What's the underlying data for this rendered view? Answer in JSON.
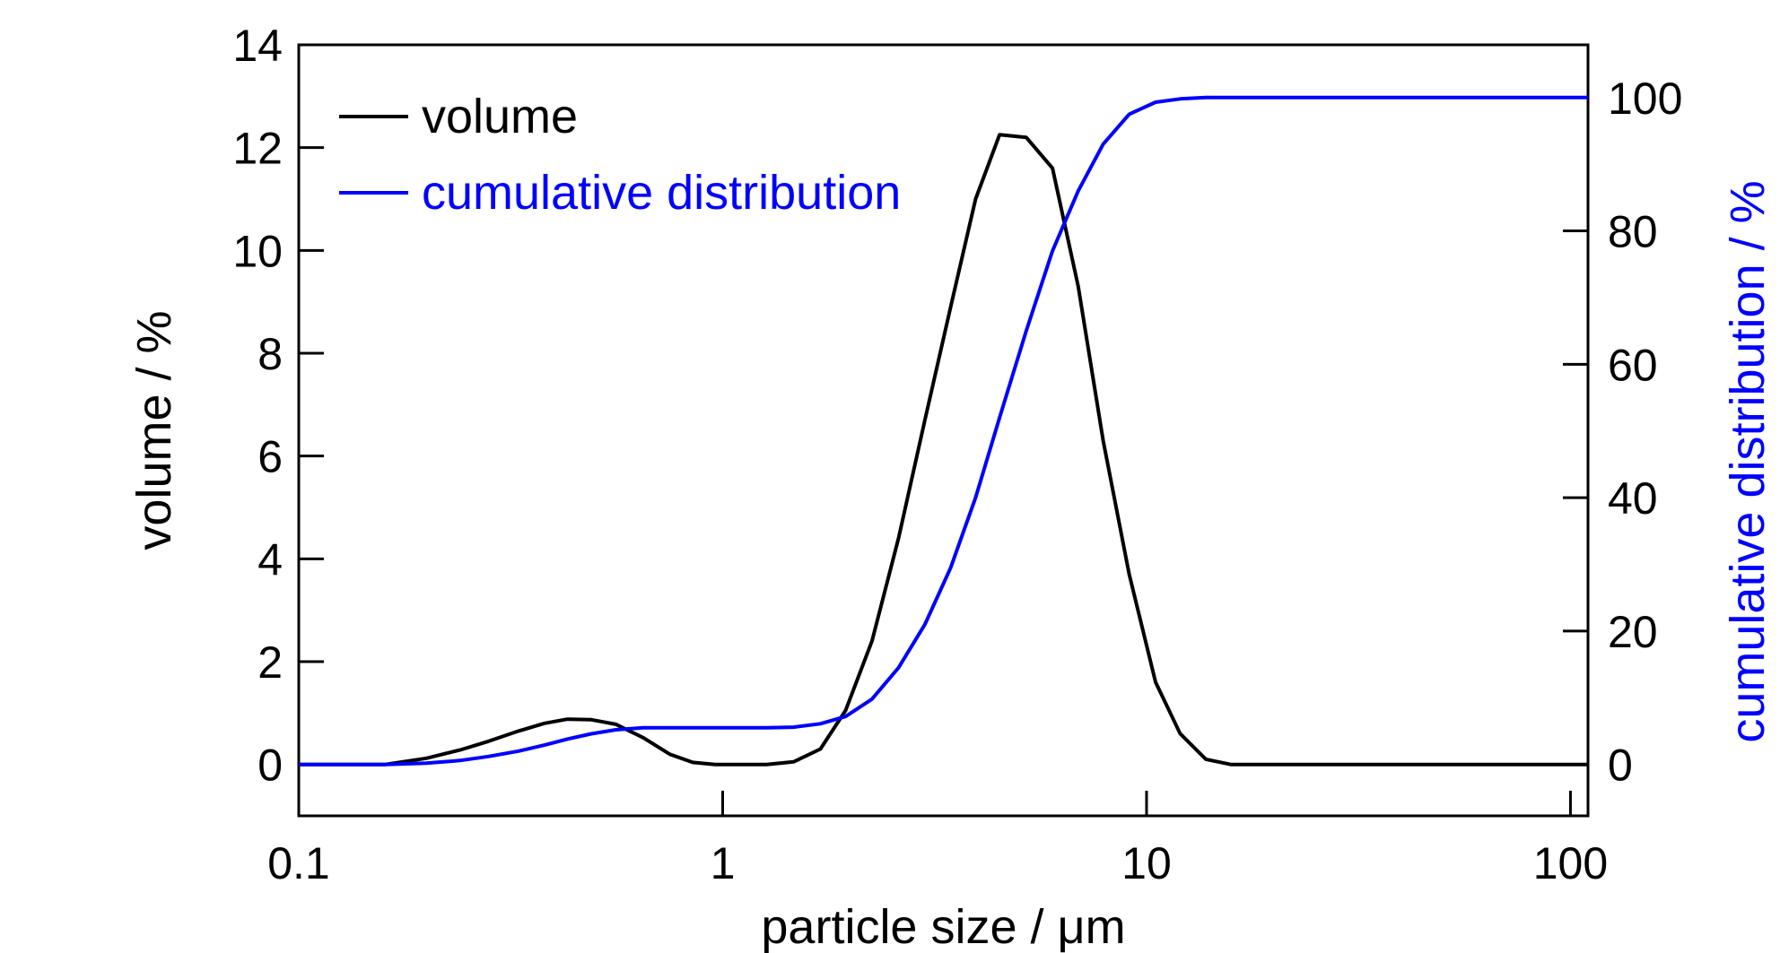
{
  "chart_data": {
    "type": "line",
    "xlabel": "particle size / μm",
    "ylabel": "volume / %",
    "y2label": "cumulative distribution / %",
    "xscale": "log",
    "xlim": [
      0.1,
      110
    ],
    "ylim": [
      -1,
      14
    ],
    "y2lim": [
      -7.7,
      107.9
    ],
    "x_ticks": [
      {
        "value": 0.1,
        "label": "0.1"
      },
      {
        "value": 1,
        "label": "1"
      },
      {
        "value": 10,
        "label": "10"
      },
      {
        "value": 100,
        "label": "100"
      }
    ],
    "y_ticks": [
      {
        "value": 0,
        "label": "0"
      },
      {
        "value": 2,
        "label": "2"
      },
      {
        "value": 4,
        "label": "4"
      },
      {
        "value": 6,
        "label": "6"
      },
      {
        "value": 8,
        "label": "8"
      },
      {
        "value": 10,
        "label": "10"
      },
      {
        "value": 12,
        "label": "12"
      },
      {
        "value": 14,
        "label": "14"
      }
    ],
    "y2_ticks": [
      {
        "value": 0,
        "label": "0"
      },
      {
        "value": 20,
        "label": "20"
      },
      {
        "value": 40,
        "label": "40"
      },
      {
        "value": 60,
        "label": "60"
      },
      {
        "value": 80,
        "label": "80"
      },
      {
        "value": 100,
        "label": "100"
      }
    ],
    "legend_position": "top-left",
    "series": [
      {
        "name": "volume",
        "axis": "left",
        "color": "#000000",
        "x": [
          0.1,
          0.13,
          0.16,
          0.2,
          0.24,
          0.28,
          0.33,
          0.38,
          0.43,
          0.49,
          0.56,
          0.65,
          0.75,
          0.85,
          0.96,
          1.1,
          1.27,
          1.47,
          1.7,
          1.95,
          2.25,
          2.6,
          3.0,
          3.45,
          3.95,
          4.5,
          5.2,
          6.0,
          6.9,
          7.9,
          9.1,
          10.5,
          12.0,
          13.8,
          15.8,
          20,
          30,
          50,
          80,
          110
        ],
        "y": [
          0,
          0,
          0,
          0.12,
          0.28,
          0.45,
          0.65,
          0.8,
          0.88,
          0.87,
          0.78,
          0.52,
          0.2,
          0.04,
          0,
          0,
          0,
          0.05,
          0.3,
          1.05,
          2.4,
          4.4,
          6.7,
          8.9,
          11.0,
          12.25,
          12.2,
          11.6,
          9.3,
          6.3,
          3.7,
          1.6,
          0.6,
          0.1,
          0,
          0,
          0,
          0,
          0,
          0
        ]
      },
      {
        "name": "cumulative distribution",
        "axis": "right",
        "color": "#0000ff",
        "x": [
          0.1,
          0.13,
          0.16,
          0.2,
          0.24,
          0.28,
          0.33,
          0.38,
          0.43,
          0.49,
          0.56,
          0.65,
          0.75,
          0.85,
          0.96,
          1.1,
          1.27,
          1.47,
          1.7,
          1.95,
          2.25,
          2.6,
          3.0,
          3.45,
          3.95,
          4.5,
          5.2,
          6.0,
          6.9,
          7.9,
          9.1,
          10.5,
          12.0,
          13.8,
          15.8,
          20,
          30,
          50,
          80,
          110
        ],
        "y": [
          0,
          0,
          0,
          0.2,
          0.6,
          1.2,
          2.0,
          2.9,
          3.8,
          4.6,
          5.2,
          5.5,
          5.5,
          5.5,
          5.5,
          5.5,
          5.5,
          5.6,
          6.1,
          7.2,
          9.8,
          14.5,
          21.0,
          29.5,
          40.0,
          52.0,
          65.0,
          77.0,
          86.0,
          93.0,
          97.5,
          99.3,
          99.8,
          100,
          100,
          100,
          100,
          100,
          100,
          100
        ]
      }
    ]
  }
}
